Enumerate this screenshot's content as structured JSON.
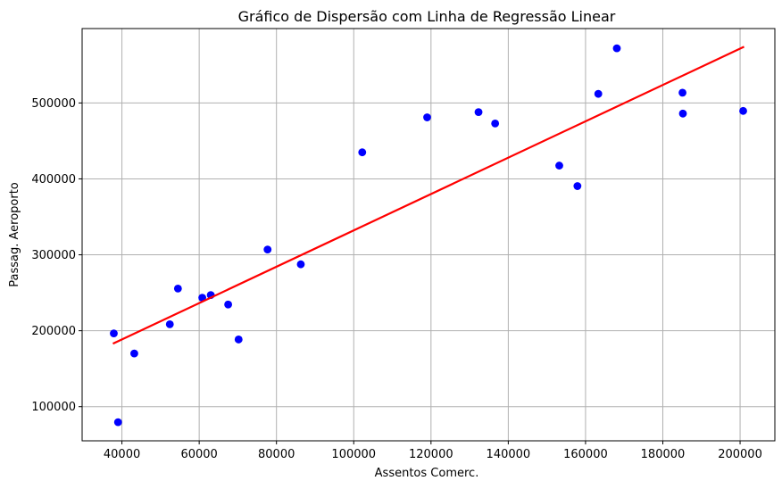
{
  "chart_data": {
    "type": "scatter",
    "title": "Gráfico de Dispersão com Linha de Regressão Linear",
    "xlabel": "Assentos Comerc.",
    "ylabel": "Passag. Aeroporto",
    "xlim": [
      29700,
      209000
    ],
    "ylim": [
      55000,
      598000
    ],
    "xticks": [
      40000,
      60000,
      80000,
      100000,
      120000,
      140000,
      160000,
      180000,
      200000
    ],
    "yticks": [
      100000,
      200000,
      300000,
      400000,
      500000
    ],
    "xtick_labels": [
      "40000",
      "60000",
      "80000",
      "100000",
      "120000",
      "140000",
      "160000",
      "180000",
      "200000"
    ],
    "ytick_labels": [
      "100000",
      "200000",
      "300000",
      "400000",
      "500000"
    ],
    "grid": true,
    "series": [
      {
        "kind": "points",
        "color": "#0000ff",
        "points": [
          [
            37900,
            196500
          ],
          [
            39000,
            79500
          ],
          [
            43200,
            170000
          ],
          [
            52400,
            208500
          ],
          [
            54500,
            255500
          ],
          [
            60800,
            243500
          ],
          [
            63000,
            247000
          ],
          [
            67500,
            234500
          ],
          [
            70200,
            188500
          ],
          [
            77700,
            307000
          ],
          [
            86300,
            287500
          ],
          [
            102200,
            435000
          ],
          [
            119000,
            481000
          ],
          [
            132300,
            488000
          ],
          [
            136600,
            473000
          ],
          [
            153200,
            417500
          ],
          [
            157900,
            390500
          ],
          [
            163300,
            512000
          ],
          [
            168100,
            572000
          ],
          [
            185100,
            513500
          ],
          [
            185200,
            486000
          ],
          [
            200800,
            489500
          ]
        ]
      },
      {
        "kind": "regression-line",
        "color": "#ff0000",
        "x": [
          37900,
          200800
        ],
        "y": [
          183500,
          573500
        ]
      }
    ]
  }
}
